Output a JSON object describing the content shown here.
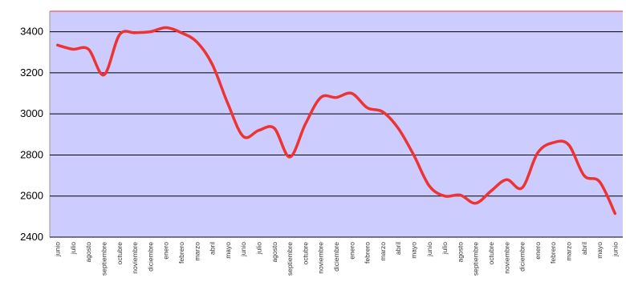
{
  "chart_data": {
    "type": "line",
    "title": "",
    "xlabel": "",
    "ylabel": "",
    "ylim": [
      2400,
      3500
    ],
    "yticks": [
      2400,
      2600,
      2800,
      3000,
      3200,
      3400
    ],
    "grid": "horizontal",
    "legend": "none",
    "colors": {
      "plot_background": "#ccccff",
      "line": "#ee3333",
      "gridline": "#000000",
      "plot_top_border": "#ff3333"
    },
    "categories": [
      "junio",
      "julio",
      "agosto",
      "septiembre",
      "octubre",
      "noviembre",
      "diciembre",
      "enero",
      "febrero",
      "marzo",
      "abril",
      "mayo",
      "junio",
      "julio",
      "agosto",
      "septiembre",
      "octubre",
      "noviembre",
      "diciembre",
      "enero",
      "febrero",
      "marzo",
      "abril",
      "mayo",
      "junio",
      "julio",
      "agosto",
      "septiembre",
      "octubre",
      "noviembre",
      "diciembre",
      "enero",
      "febrero",
      "marzo",
      "abril",
      "mayo",
      "junio"
    ],
    "series": [
      {
        "values": [
          3335,
          3315,
          3315,
          3190,
          3385,
          3395,
          3400,
          3420,
          3395,
          3350,
          3240,
          3050,
          2890,
          2920,
          2930,
          2790,
          2950,
          3080,
          3080,
          3100,
          3030,
          3010,
          2930,
          2800,
          2650,
          2600,
          2605,
          2565,
          2625,
          2680,
          2640,
          2810,
          2860,
          2850,
          2700,
          2670,
          2515
        ]
      }
    ]
  }
}
